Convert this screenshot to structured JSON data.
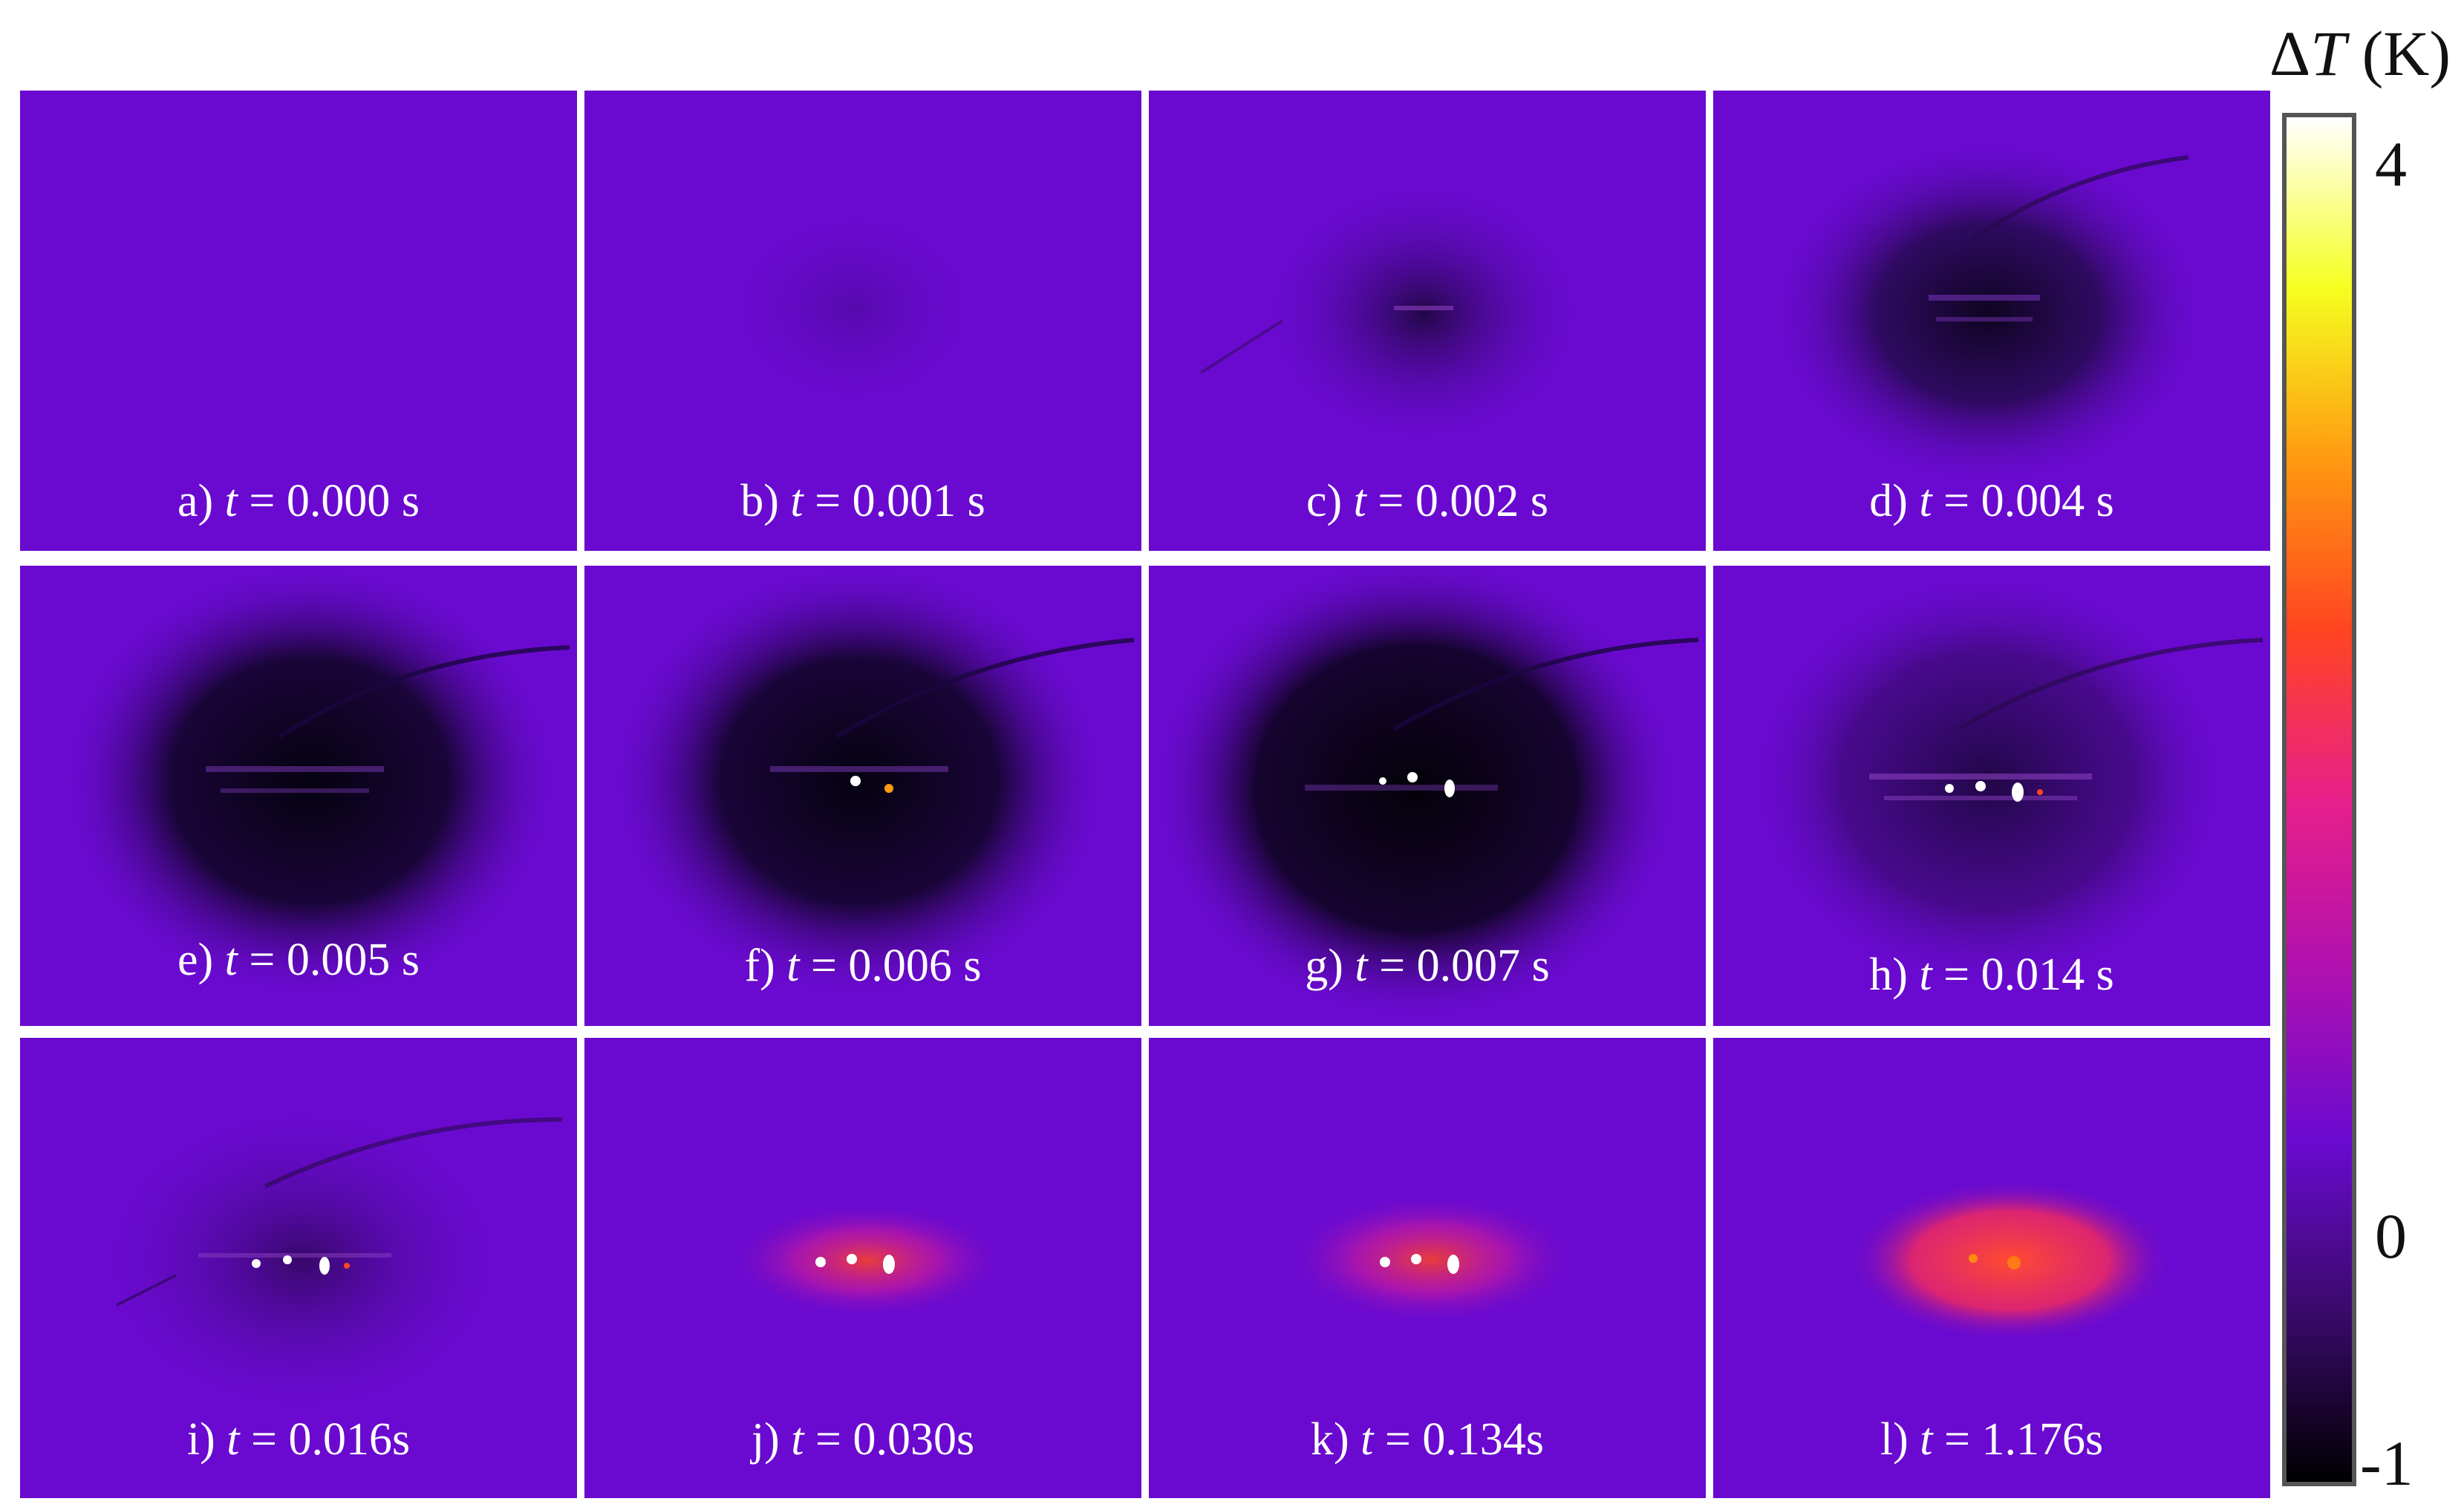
{
  "colorbar": {
    "title_symbol": "Δ",
    "title_var": "T",
    "title_unit": " (K)",
    "max_label": "4",
    "zero_label": "0",
    "min_label": "-1",
    "colors": [
      "#000000",
      "#3a0a6a",
      "#6a0ad0",
      "#b010b0",
      "#e8208a",
      "#ff4520",
      "#ff9a10",
      "#f5ff20",
      "#ffffff"
    ]
  },
  "panels": [
    {
      "letter": "a)",
      "var": "t",
      "value": " = 0.000 s",
      "state": "baseline"
    },
    {
      "letter": "b)",
      "var": "t",
      "value": " = 0.001 s",
      "state": "faint-cooling"
    },
    {
      "letter": "c)",
      "var": "t",
      "value": " = 0.002 s",
      "state": "cooling"
    },
    {
      "letter": "d)",
      "var": "t",
      "value": " = 0.004 s",
      "state": "cooling"
    },
    {
      "letter": "e)",
      "var": "t",
      "value": " = 0.005 s",
      "state": "strong-cooling"
    },
    {
      "letter": "f)",
      "var": "t",
      "value": " = 0.006 s",
      "state": "cooling-hotspots"
    },
    {
      "letter": "g)",
      "var": "t",
      "value": " = 0.007 s",
      "state": "cooling-hotspots"
    },
    {
      "letter": "h)",
      "var": "t",
      "value": " = 0.014 s",
      "state": "hotspots"
    },
    {
      "letter": "i)",
      "var": "t",
      "value": " = 0.016s",
      "state": "hotspots"
    },
    {
      "letter": "j)",
      "var": "t",
      "value": " = 0.030s",
      "state": "heating"
    },
    {
      "letter": "k)",
      "var": "t",
      "value": " =  0.134s",
      "state": "heating"
    },
    {
      "letter": "l)",
      "var": "t",
      "value": " = 1.176s",
      "state": "diffuse-heating"
    }
  ]
}
